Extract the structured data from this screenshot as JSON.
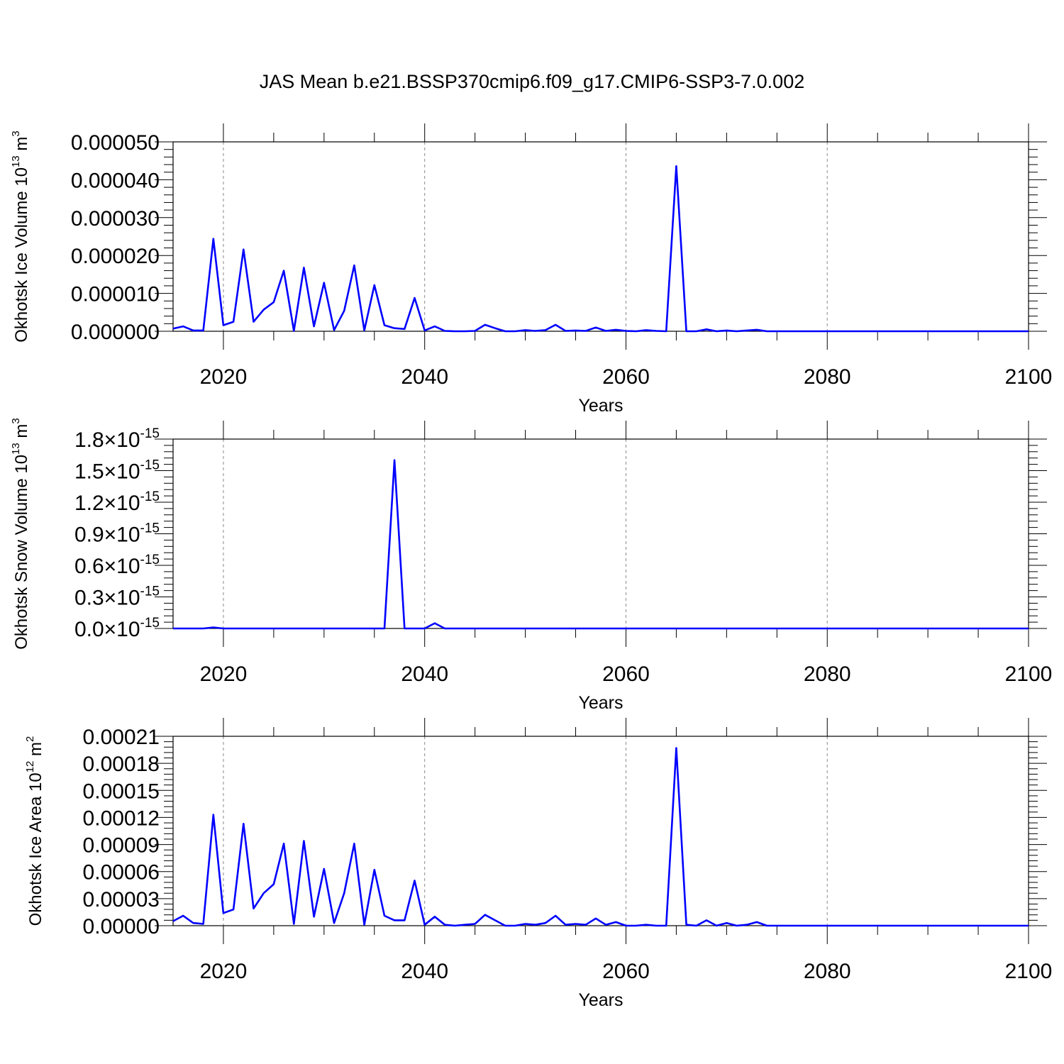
{
  "title": "JAS Mean b.e21.BSSP370cmip6.f09_g17.CMIP6-SSP3-7.0.002",
  "colors": {
    "line": "#0000ff",
    "axis": "#000000",
    "grid": "#888888"
  },
  "chart_data": [
    {
      "type": "line",
      "ylabel_main": "Okhotsk Ice Volume 10",
      "ylabel_exp": "13",
      "ylabel_unit": " m",
      "ylabel_unit_exp": "3",
      "xlabel": "Years",
      "xlim": [
        2015,
        2100
      ],
      "ylim": [
        0,
        5e-05
      ],
      "x_ticks": [
        "2020",
        "2040",
        "2060",
        "2080",
        "2100"
      ],
      "y_ticks": [
        "0.000000",
        "0.000010",
        "0.000020",
        "0.000030",
        "0.000040",
        "0.000050"
      ],
      "x_grid": "dashed at major x ticks",
      "series": [
        {
          "x_start": 2015,
          "values": [
            7e-07,
            1.3e-06,
            2e-07,
            2e-07,
            2.44e-05,
            1.6e-06,
            2.5e-06,
            2.16e-05,
            2.5e-06,
            5.7e-06,
            7.7e-06,
            1.6e-05,
            1e-07,
            1.68e-05,
            1.3e-06,
            1.28e-05,
            3e-07,
            5.4e-06,
            1.74e-05,
            2e-07,
            1.22e-05,
            1.6e-06,
            8e-07,
            6e-07,
            8.8e-06,
            2e-07,
            1.3e-06,
            1e-07,
            0.0,
            0.0,
            1e-07,
            1.7e-06,
            8e-07,
            0.0,
            0.0,
            3e-07,
            1e-07,
            3e-07,
            1.7e-06,
            1e-07,
            2e-07,
            1e-07,
            1e-06,
            1e-07,
            4e-07,
            1e-07,
            0.0,
            3e-07,
            1e-07,
            0.0,
            4.36e-05,
            0.0,
            0.0,
            5e-07,
            0.0,
            2e-07,
            0.0,
            2e-07,
            4e-07,
            0.0,
            0.0,
            0.0,
            0.0,
            0.0,
            0.0,
            0.0,
            0.0,
            0.0,
            0.0,
            0.0,
            0.0,
            0.0,
            0.0,
            0.0,
            0.0,
            0.0,
            0.0,
            0.0,
            0.0,
            0.0,
            0.0,
            0.0,
            0.0,
            0.0,
            0.0,
            0.0
          ]
        }
      ]
    },
    {
      "type": "line",
      "ylabel_main": "Okhotsk Snow Volume 10",
      "ylabel_exp": "13",
      "ylabel_unit": " m",
      "ylabel_unit_exp": "3",
      "xlabel": "Years",
      "xlim": [
        2015,
        2100
      ],
      "ylim": [
        0,
        1.8e-15
      ],
      "x_ticks": [
        "2020",
        "2040",
        "2060",
        "2080",
        "2100"
      ],
      "y_tick_mantissas": [
        "0.0",
        "0.3",
        "0.6",
        "0.9",
        "1.2",
        "1.5",
        "1.8"
      ],
      "y_tick_base": "10",
      "y_tick_exp": "-15",
      "x_grid": "dashed at major x ticks",
      "series": [
        {
          "x_start": 2015,
          "values": [
            0,
            0,
            0,
            0,
            1e-17,
            0,
            0,
            0,
            0,
            0,
            0,
            0,
            0,
            0,
            0,
            0,
            0,
            0,
            0,
            0,
            0,
            0,
            1.6e-15,
            0,
            0,
            0,
            5e-17,
            0,
            0,
            0,
            0,
            0,
            0,
            0,
            0,
            0,
            0,
            0,
            0,
            0,
            0,
            0,
            0,
            0,
            0,
            0,
            0,
            0,
            0,
            0,
            0,
            0,
            0,
            0,
            0,
            0,
            0,
            0,
            0,
            0,
            0,
            0,
            0,
            0,
            0,
            0,
            0,
            0,
            0,
            0,
            0,
            0,
            0,
            0,
            0,
            0,
            0,
            0,
            0,
            0,
            0,
            0,
            0,
            0,
            0,
            0
          ]
        }
      ]
    },
    {
      "type": "line",
      "ylabel_main": "Okhotsk Ice Area 10",
      "ylabel_exp": "12",
      "ylabel_unit": " m",
      "ylabel_unit_exp": "2",
      "xlabel": "Years",
      "xlim": [
        2015,
        2100
      ],
      "ylim": [
        0,
        0.00021
      ],
      "x_ticks": [
        "2020",
        "2040",
        "2060",
        "2080",
        "2100"
      ],
      "y_ticks": [
        "0.00000",
        "0.00003",
        "0.00006",
        "0.00009",
        "0.00012",
        "0.00015",
        "0.00018",
        "0.00021"
      ],
      "x_grid": "dashed at major x ticks",
      "series": [
        {
          "x_start": 2015,
          "values": [
            5e-06,
            1.1e-05,
            3e-06,
            2e-06,
            0.000123,
            1.4e-05,
            1.8e-05,
            0.000113,
            1.9e-05,
            3.6e-05,
            4.6e-05,
            9.1e-05,
            2e-06,
            9.4e-05,
            1e-05,
            6.3e-05,
            3e-06,
            3.6e-05,
            9.1e-05,
            1e-06,
            6.2e-05,
            1.1e-05,
            6e-06,
            6e-06,
            5e-05,
            1e-06,
            1e-05,
            1e-06,
            0.0,
            1e-06,
            2e-06,
            1.2e-05,
            6e-06,
            0.0,
            0.0,
            2e-06,
            1e-06,
            3e-06,
            1.1e-05,
            1e-06,
            2e-06,
            1e-06,
            8e-06,
            1e-06,
            4e-06,
            0.0,
            0.0,
            1e-06,
            0.0,
            0.0,
            0.000197,
            1e-06,
            0.0,
            6e-06,
            0.0,
            3e-06,
            0.0,
            1e-06,
            4e-06,
            0.0,
            0.0,
            0.0,
            0.0,
            0.0,
            0.0,
            0.0,
            0.0,
            0.0,
            0.0,
            0.0,
            0.0,
            0.0,
            0.0,
            0.0,
            0.0,
            0.0,
            0.0,
            0.0,
            0.0,
            0.0,
            0.0,
            0.0,
            0.0,
            0.0,
            0.0,
            0.0
          ]
        }
      ]
    }
  ]
}
